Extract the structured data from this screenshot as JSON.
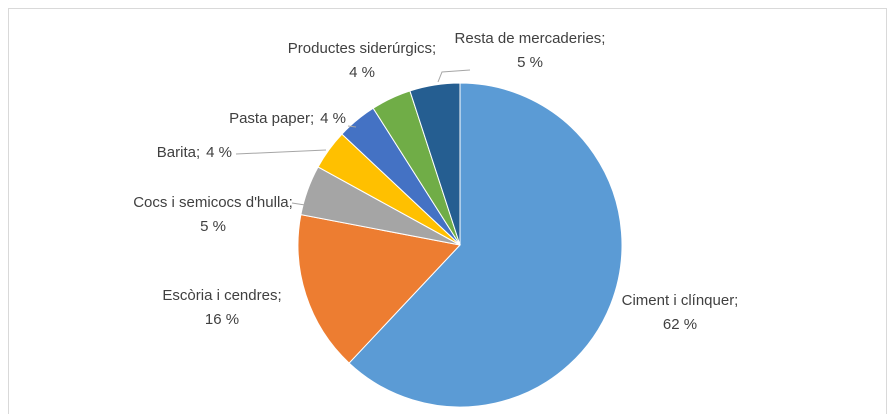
{
  "chart_data": {
    "type": "pie",
    "categories": [
      "Ciment i clínquer;",
      "Escòria i cendres;",
      "Cocs i semicocs d'hulla;",
      "Barita;",
      "Pasta paper;",
      "Productes siderúrgics;",
      "Resta de mercaderies;"
    ],
    "values": [
      62,
      16,
      5,
      4,
      4,
      4,
      5
    ],
    "value_labels": [
      "62 %",
      "16 %",
      "5 %",
      "4 %",
      "4 %",
      "4 %",
      "5 %"
    ],
    "colors": [
      "#5b9bd5",
      "#ed7d31",
      "#a5a5a5",
      "#ffc000",
      "#4472c4",
      "#70ad47",
      "#255e91"
    ]
  }
}
